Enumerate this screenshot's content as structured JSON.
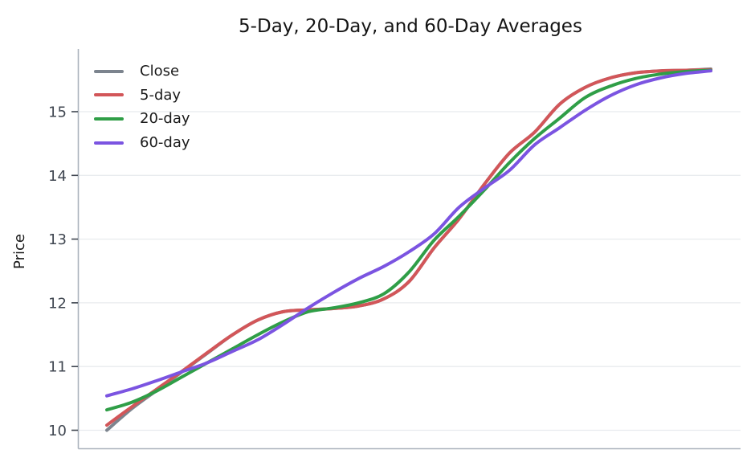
{
  "chart_data": {
    "type": "line",
    "title": "5-Day, 20-Day, and 60-Day Averages",
    "xlabel": "",
    "ylabel": "Price",
    "xlim": [
      0,
      120
    ],
    "ylim": [
      9.7,
      16.0
    ],
    "xticks": [],
    "yticks": [
      10,
      11,
      12,
      13,
      14,
      15
    ],
    "grid": "horizontal",
    "legend_position": "upper left",
    "x": [
      0,
      5,
      10,
      15,
      20,
      25,
      30,
      35,
      40,
      45,
      50,
      55,
      60,
      65,
      70,
      75,
      80,
      85,
      90,
      95,
      100,
      105,
      110,
      115,
      120
    ],
    "series": [
      {
        "name": "Close",
        "color": "#7c848e",
        "values": [
          10.0,
          10.34,
          10.63,
          10.92,
          11.21,
          11.5,
          11.73,
          11.86,
          11.89,
          11.91,
          11.95,
          12.06,
          12.33,
          12.86,
          13.32,
          13.86,
          14.35,
          14.68,
          15.12,
          15.38,
          15.53,
          15.61,
          15.64,
          15.65,
          15.67
        ]
      },
      {
        "name": "5-day",
        "color": "#d25659",
        "values": [
          10.08,
          10.37,
          10.65,
          10.93,
          11.22,
          11.5,
          11.73,
          11.86,
          11.89,
          11.91,
          11.95,
          12.06,
          12.33,
          12.86,
          13.32,
          13.86,
          14.35,
          14.68,
          15.12,
          15.38,
          15.53,
          15.61,
          15.64,
          15.65,
          15.66
        ]
      },
      {
        "name": "20-day",
        "color": "#2f9e47",
        "values": [
          10.32,
          10.44,
          10.62,
          10.84,
          11.06,
          11.28,
          11.5,
          11.7,
          11.86,
          11.92,
          12.0,
          12.14,
          12.48,
          12.98,
          13.36,
          13.77,
          14.2,
          14.58,
          14.9,
          15.22,
          15.4,
          15.52,
          15.59,
          15.63,
          15.65
        ]
      },
      {
        "name": "60-day",
        "color": "#7b54e1",
        "values": [
          10.54,
          10.65,
          10.78,
          10.92,
          11.06,
          11.24,
          11.42,
          11.66,
          11.92,
          12.16,
          12.38,
          12.57,
          12.8,
          13.08,
          13.5,
          13.8,
          14.08,
          14.48,
          14.75,
          15.02,
          15.25,
          15.42,
          15.53,
          15.6,
          15.64
        ]
      }
    ],
    "colors": {
      "axis_spine": "#aab2bc",
      "gridline": "#e8ebee",
      "tick": "#3f4650",
      "title_text": "#141414"
    }
  }
}
